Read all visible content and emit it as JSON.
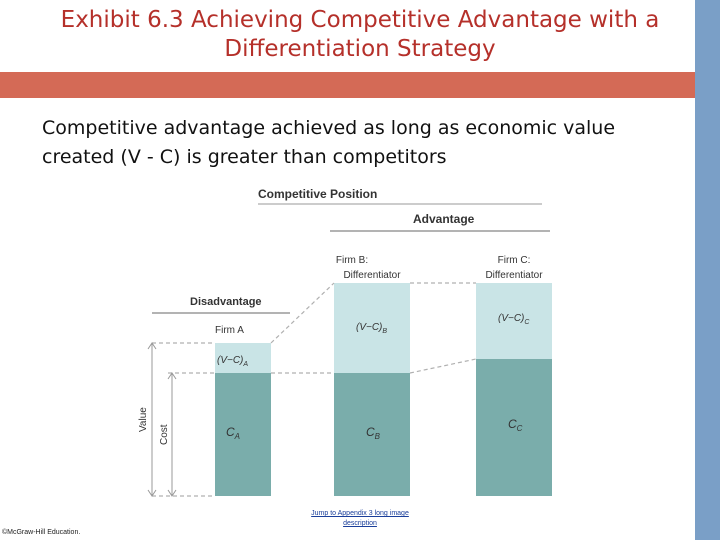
{
  "slide": {
    "title_line1": "Exhibit 6.3 Achieving Competitive Advantage with a",
    "title_line2": "Differentiation Strategy",
    "subtitle_line1": "Competitive advantage achieved as long as economic value",
    "subtitle_line2": "created (V - C) is greater than competitors",
    "copyright": "©McGraw-Hill Education.",
    "link_line1": "Jump to Appendix 3 long image",
    "link_line2": "description"
  },
  "diagram": {
    "heading": "Competitive Position",
    "advantage_label": "Advantage",
    "disadvantage_label": "Disadvantage",
    "value_axis_label": "Value",
    "cost_axis_label": "Cost",
    "firm_a_label": "Firm A",
    "firm_b_line1": "Firm B:",
    "firm_b_line2": "Differentiator",
    "firm_c_line1": "Firm C:",
    "firm_c_line2": "Differentiator",
    "vc_label": "(V−C)",
    "cost_label": "C",
    "sub_a": "A",
    "sub_b": "B",
    "sub_c": "C",
    "colors": {
      "value_segment": "#c9e4e6",
      "cost_segment": "#7aadab",
      "guide": "#b0b0b0"
    }
  }
}
